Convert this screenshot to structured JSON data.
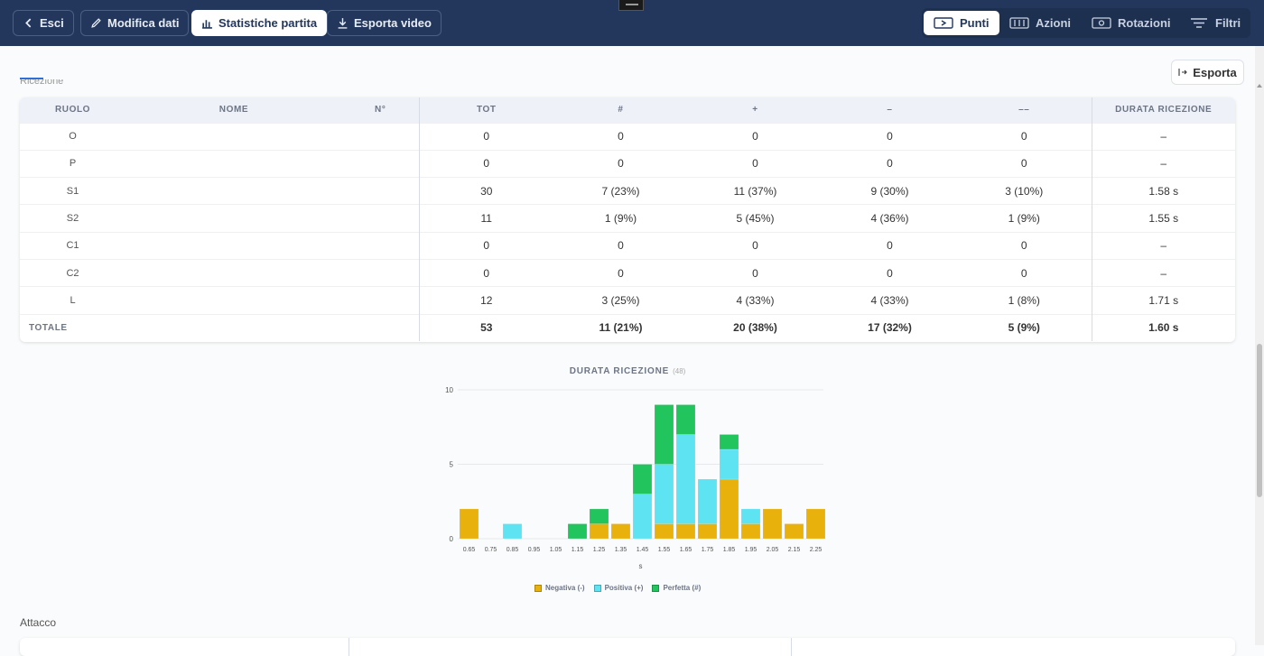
{
  "toolbar": {
    "exit_label": "Esci",
    "edit_label": "Modifica dati",
    "stats_label": "Statistiche partita",
    "export_video_label": "Esporta video"
  },
  "view_tabs": {
    "points": "Punti",
    "actions": "Azioni",
    "rotations": "Rotazioni",
    "filters": "Filtri"
  },
  "section": {
    "title": "Ricezione",
    "export_label": "Esporta"
  },
  "table": {
    "headers": [
      "RUOLO",
      "NOME",
      "N°",
      "TOT",
      "#",
      "+",
      "–",
      "––",
      "DURATA RICEZIONE"
    ],
    "rows": [
      {
        "ruolo": "O",
        "nome": "",
        "num": "",
        "tot": "0",
        "perfect": "0",
        "positive": "0",
        "negative": "0",
        "error": "0",
        "duration": "–"
      },
      {
        "ruolo": "P",
        "nome": "",
        "num": "",
        "tot": "0",
        "perfect": "0",
        "positive": "0",
        "negative": "0",
        "error": "0",
        "duration": "–"
      },
      {
        "ruolo": "S1",
        "nome": "",
        "num": "",
        "tot": "30",
        "perfect": "7 (23%)",
        "positive": "11 (37%)",
        "negative": "9 (30%)",
        "error": "3 (10%)",
        "duration": "1.58 s"
      },
      {
        "ruolo": "S2",
        "nome": "",
        "num": "",
        "tot": "11",
        "perfect": "1 (9%)",
        "positive": "5 (45%)",
        "negative": "4 (36%)",
        "error": "1 (9%)",
        "duration": "1.55 s"
      },
      {
        "ruolo": "C1",
        "nome": "",
        "num": "",
        "tot": "0",
        "perfect": "0",
        "positive": "0",
        "negative": "0",
        "error": "0",
        "duration": "–"
      },
      {
        "ruolo": "C2",
        "nome": "",
        "num": "",
        "tot": "0",
        "perfect": "0",
        "positive": "0",
        "negative": "0",
        "error": "0",
        "duration": "–"
      },
      {
        "ruolo": "L",
        "nome": "",
        "num": "",
        "tot": "12",
        "perfect": "3 (25%)",
        "positive": "4 (33%)",
        "negative": "4 (33%)",
        "error": "1 (8%)",
        "duration": "1.71 s"
      }
    ],
    "total": {
      "label": "TOTALE",
      "tot": "53",
      "perfect": "11 (21%)",
      "positive": "20 (38%)",
      "negative": "17 (32%)",
      "error": "5 (9%)",
      "duration": "1.60 s"
    }
  },
  "chart_data": {
    "type": "bar",
    "stacked": true,
    "title": "DURATA RICEZIONE",
    "count_label": "(48)",
    "xlabel": "s",
    "ylabel": "",
    "ylim": [
      0,
      10
    ],
    "yticks": [
      0,
      5,
      10
    ],
    "grid": true,
    "legend_position": "bottom",
    "categories": [
      "0.65",
      "0.75",
      "0.85",
      "0.95",
      "1.05",
      "1.15",
      "1.25",
      "1.35",
      "1.45",
      "1.55",
      "1.65",
      "1.75",
      "1.85",
      "1.95",
      "2.05",
      "2.15",
      "2.25"
    ],
    "series": [
      {
        "name": "Negativa (-)",
        "color": "#e8b10c",
        "values": [
          2,
          0,
          0,
          0,
          0,
          0,
          1,
          1,
          0,
          1,
          1,
          1,
          4,
          1,
          2,
          1,
          2
        ]
      },
      {
        "name": "Positiva (+)",
        "color": "#5de3f2",
        "values": [
          0,
          0,
          1,
          0,
          0,
          0,
          0,
          0,
          3,
          4,
          6,
          3,
          2,
          1,
          0,
          0,
          0
        ]
      },
      {
        "name": "Perfetta (#)",
        "color": "#22c45e",
        "values": [
          0,
          0,
          0,
          0,
          0,
          1,
          1,
          0,
          2,
          4,
          2,
          0,
          1,
          0,
          0,
          0,
          0
        ]
      }
    ]
  },
  "next_section": {
    "title": "Attacco"
  }
}
